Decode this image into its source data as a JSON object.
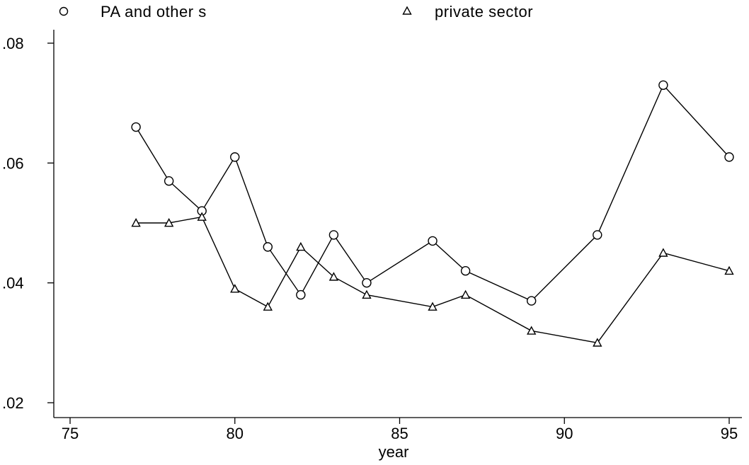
{
  "chart_data": {
    "type": "line",
    "title": "",
    "xlabel": "year",
    "ylabel": "",
    "xlim": [
      75,
      95
    ],
    "ylim": [
      0.02,
      0.08
    ],
    "x_ticks": [
      75,
      80,
      85,
      90,
      95
    ],
    "x_tick_labels": [
      "75",
      "80",
      "85",
      "90",
      "95"
    ],
    "y_ticks": [
      0.02,
      0.04,
      0.06,
      0.08
    ],
    "y_tick_labels": [
      ".02",
      ".04",
      ".06",
      ".08"
    ],
    "grid": false,
    "legend_position": "top",
    "series": [
      {
        "name": "PA and other s",
        "marker": "circle",
        "x": [
          77,
          78,
          79,
          80,
          81,
          82,
          83,
          84,
          86,
          87,
          89,
          91,
          93,
          95
        ],
        "y": [
          0.066,
          0.057,
          0.052,
          0.061,
          0.046,
          0.038,
          0.048,
          0.04,
          0.047,
          0.042,
          0.037,
          0.048,
          0.073,
          0.061
        ]
      },
      {
        "name": "private sector",
        "marker": "triangle",
        "x": [
          77,
          78,
          79,
          80,
          81,
          82,
          83,
          84,
          86,
          87,
          89,
          91,
          93,
          95
        ],
        "y": [
          0.05,
          0.05,
          0.051,
          0.039,
          0.036,
          0.046,
          0.041,
          0.038,
          0.036,
          0.038,
          0.032,
          0.03,
          0.045,
          0.042
        ]
      }
    ]
  }
}
